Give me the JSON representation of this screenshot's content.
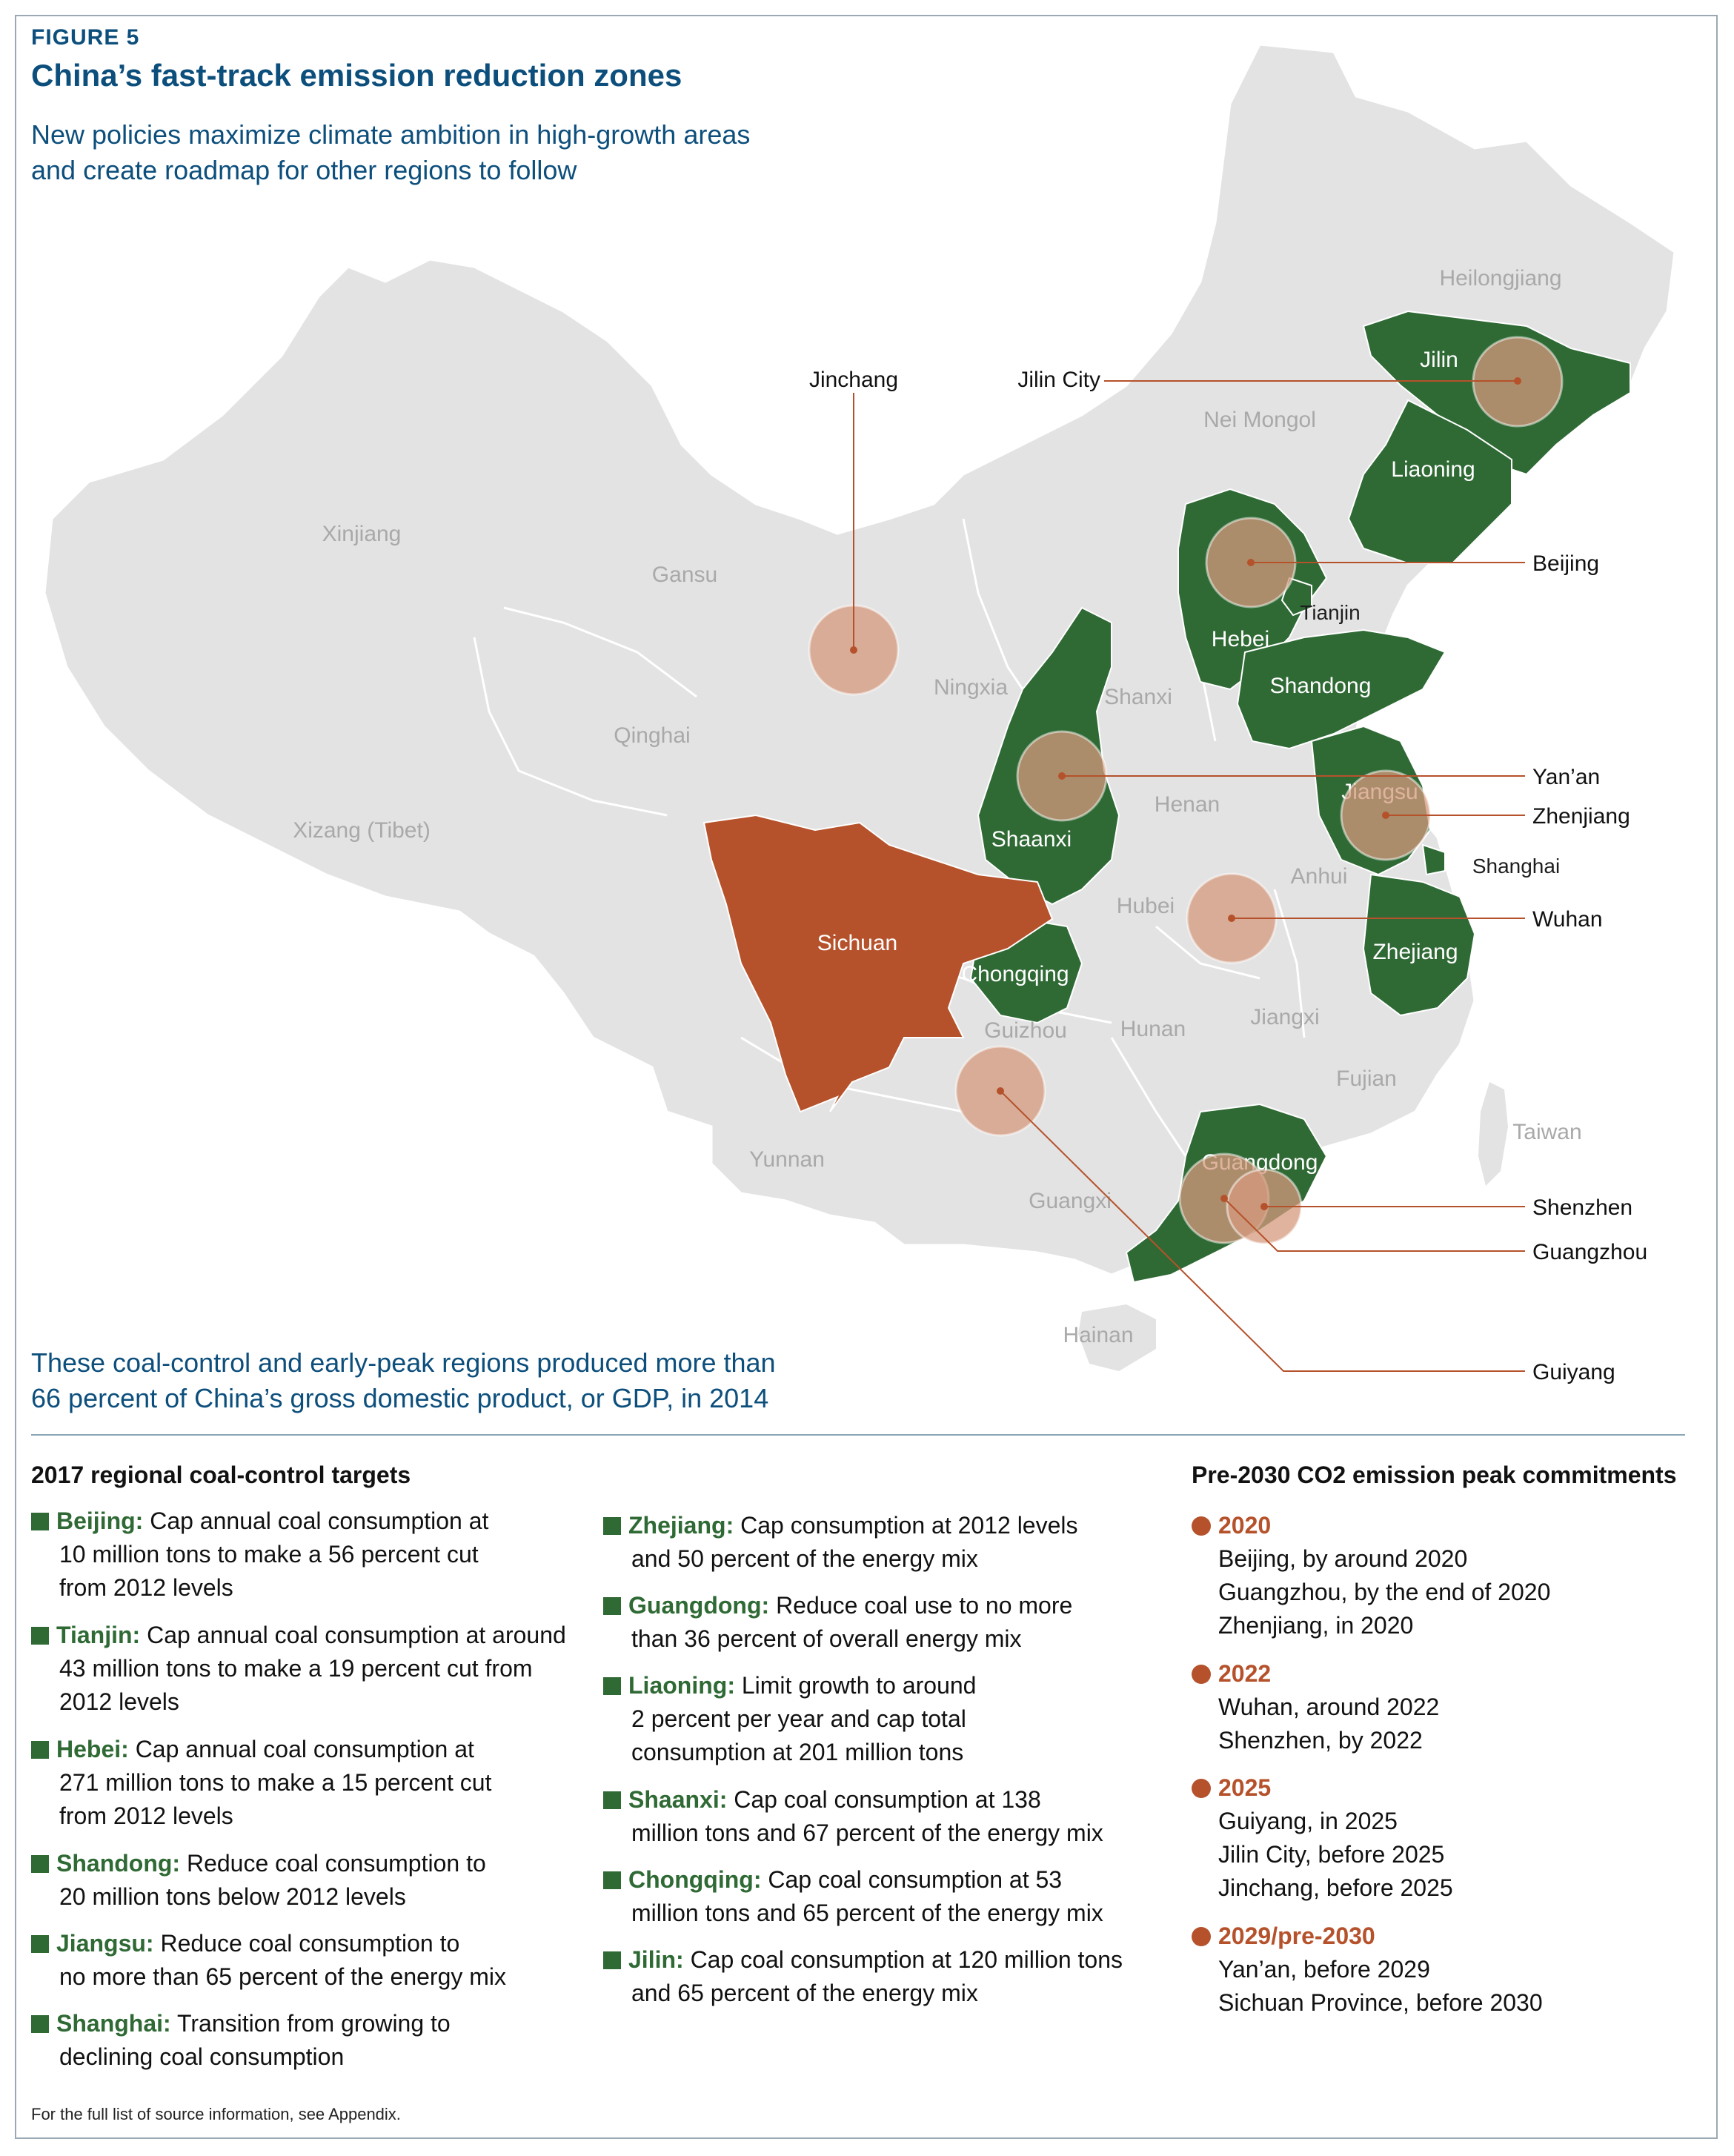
{
  "header": {
    "figure_label": "FIGURE 5",
    "title": "China’s fast-track emission reduction zones",
    "subtitle_lines": [
      "New policies maximize climate ambition in high-growth areas",
      "and create roadmap for other regions to follow"
    ]
  },
  "gdp_note_lines": [
    "These coal-control and early-peak regions produced more than",
    "66 percent of China’s gross domestic product, or GDP, in 2014"
  ],
  "colors": {
    "coal_control": "#2f6a35",
    "early_peak_province": "#b5522b",
    "city_circle": "#d69a7e",
    "base_land": "#e3e3e3",
    "title_blue": "#0d4f7c"
  },
  "map": {
    "provinces_gray": [
      "Heilongjiang",
      "Nei Mongol",
      "Xinjiang",
      "Gansu",
      "Qinghai",
      "Xizang (Tibet)",
      "Ningxia",
      "Shanxi",
      "Henan",
      "Anhui",
      "Hubei",
      "Hunan",
      "Jiangxi",
      "Guizhou",
      "Yunnan",
      "Guangxi",
      "Fujian",
      "Hainan",
      "Taiwan"
    ],
    "provinces_green": [
      "Jilin",
      "Liaoning",
      "Hebei",
      "Shandong",
      "Jiangsu",
      "Shaanxi",
      "Zhejiang",
      "Chongqing",
      "Guangdong",
      "Tianjin",
      "Shanghai"
    ],
    "province_orange": "Sichuan",
    "cities": [
      "Jinchang",
      "Jilin City",
      "Beijing",
      "Yan’an",
      "Zhenjiang",
      "Wuhan",
      "Shenzhen",
      "Guangzhou",
      "Guiyang"
    ]
  },
  "targets": {
    "heading": "2017 regional coal-control targets",
    "col1": [
      {
        "name": "Beijing:",
        "lines": [
          " Cap annual coal consumption at",
          "10 million tons to make a 56 percent cut",
          "from 2012 levels"
        ]
      },
      {
        "name": "Tianjin:",
        "lines": [
          " Cap annual coal consumption at around",
          "43 million tons to make a 19 percent cut from",
          "2012 levels"
        ]
      },
      {
        "name": "Hebei:",
        "lines": [
          " Cap annual coal consumption at",
          "271 million tons to make a 15 percent cut",
          "from 2012 levels"
        ]
      },
      {
        "name": "Shandong:",
        "lines": [
          " Reduce coal consumption to",
          "20 million tons below 2012 levels"
        ]
      },
      {
        "name": "Jiangsu:",
        "lines": [
          " Reduce coal consumption to",
          "no more than 65 percent of the energy mix"
        ]
      },
      {
        "name": "Shanghai:",
        "lines": [
          " Transition from growing to",
          "declining coal consumption"
        ]
      }
    ],
    "col2": [
      {
        "name": "Zhejiang:",
        "lines": [
          " Cap consumption at 2012 levels",
          "and 50 percent of the energy mix"
        ]
      },
      {
        "name": "Guangdong:",
        "lines": [
          " Reduce coal use to no more",
          "than 36 percent of overall energy mix"
        ]
      },
      {
        "name": "Liaoning:",
        "lines": [
          " Limit growth to around",
          "2 percent per year and cap total",
          "consumption at 201 million tons"
        ]
      },
      {
        "name": "Shaanxi:",
        "lines": [
          " Cap coal consumption at 138",
          "million tons and 67 percent of the energy mix"
        ]
      },
      {
        "name": "Chongqing:",
        "lines": [
          " Cap coal consumption at 53",
          "million tons and 65 percent of the energy mix"
        ]
      },
      {
        "name": "Jilin:",
        "lines": [
          " Cap coal consumption at 120 million tons",
          "and 65 percent of the energy mix"
        ]
      }
    ]
  },
  "commitments": {
    "heading": "Pre-2030 CO2 emission peak commitments",
    "groups": [
      {
        "year": "2020",
        "items": [
          "Beijing, by around 2020",
          "Guangzhou, by the end of 2020",
          "Zhenjiang, in 2020"
        ]
      },
      {
        "year": "2022",
        "items": [
          "Wuhan, around 2022",
          "Shenzhen, by 2022"
        ]
      },
      {
        "year": "2025",
        "items": [
          "Guiyang, in 2025",
          "Jilin City, before 2025",
          "Jinchang, before 2025"
        ]
      },
      {
        "year": "2029/pre-2030",
        "items": [
          "Yan’an, before 2029",
          "Sichuan Province, before 2030"
        ]
      }
    ]
  },
  "footnote": "For the full list of source information, see Appendix."
}
